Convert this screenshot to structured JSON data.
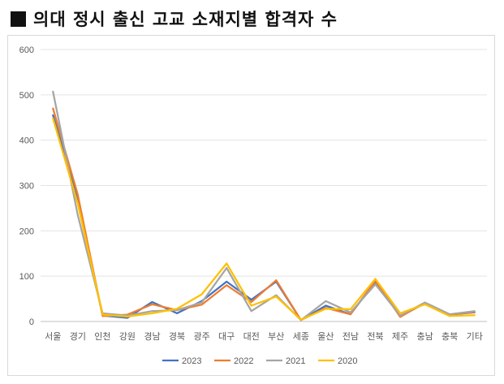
{
  "title": "의대 정시 출신 고교 소재지별 합격자 수",
  "chart_data": {
    "type": "line",
    "title": "의대 정시 출신 고교 소재지별 합격자 수",
    "xlabel": "",
    "ylabel": "",
    "ylim": [
      0,
      600
    ],
    "yticks": [
      0,
      100,
      200,
      300,
      400,
      500,
      600
    ],
    "grid": true,
    "legend_position": "bottom",
    "categories": [
      "서울",
      "경기",
      "인천",
      "강원",
      "경남",
      "경북",
      "광주",
      "대구",
      "대전",
      "부산",
      "세종",
      "울산",
      "전남",
      "전북",
      "제주",
      "충남",
      "충북",
      "기타"
    ],
    "series": [
      {
        "name": "2023",
        "color": "#4472C4",
        "values": [
          455,
          270,
          13,
          8,
          43,
          18,
          45,
          88,
          48,
          88,
          3,
          35,
          16,
          88,
          12,
          40,
          15,
          20
        ]
      },
      {
        "name": "2022",
        "color": "#ED7D31",
        "values": [
          470,
          280,
          12,
          15,
          38,
          25,
          37,
          80,
          43,
          91,
          3,
          30,
          16,
          90,
          10,
          41,
          15,
          21
        ]
      },
      {
        "name": "2021",
        "color": "#A5A5A5",
        "values": [
          507,
          235,
          18,
          13,
          23,
          25,
          42,
          118,
          23,
          58,
          3,
          45,
          20,
          82,
          13,
          42,
          16,
          23
        ]
      },
      {
        "name": "2020",
        "color": "#FFC000",
        "values": [
          448,
          260,
          15,
          11,
          18,
          28,
          60,
          128,
          35,
          55,
          4,
          28,
          27,
          94,
          18,
          38,
          12,
          14
        ]
      }
    ]
  }
}
